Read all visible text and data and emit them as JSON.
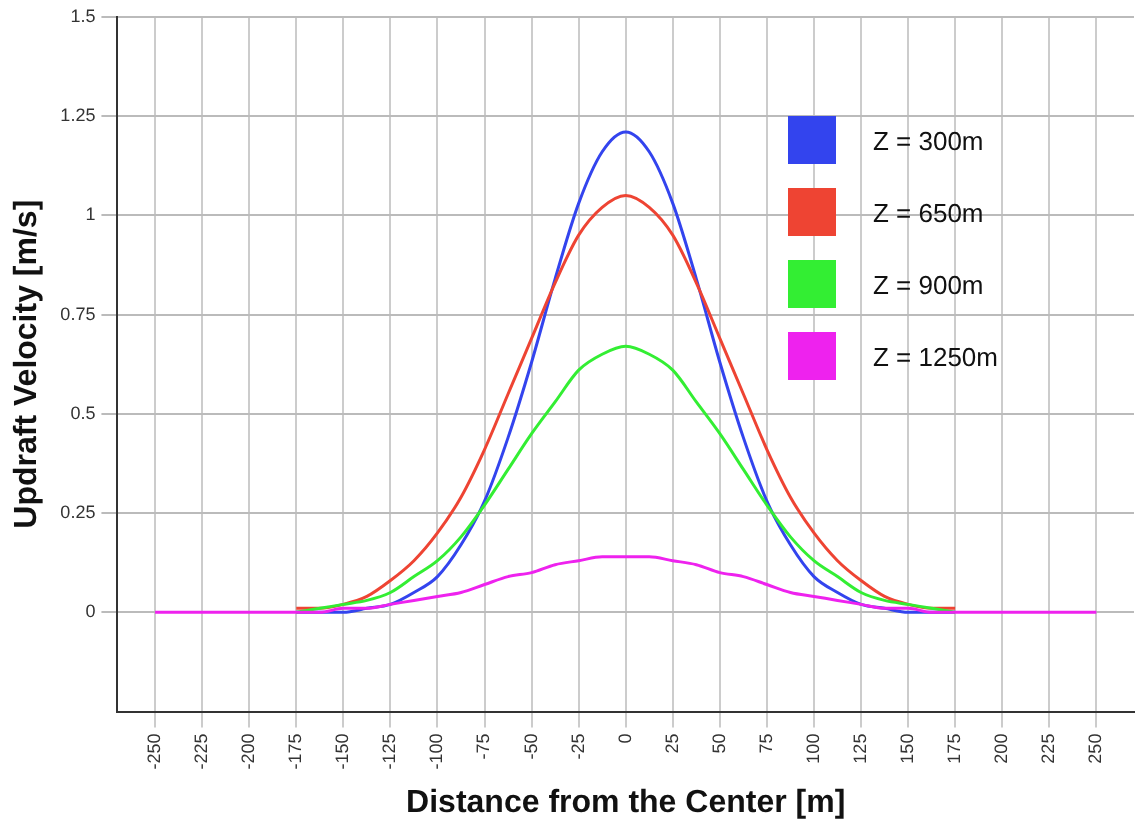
{
  "chart_data": {
    "type": "line",
    "xlabel": "Distance from the Center [m]",
    "ylabel": "Updraft Velocity [m/s]",
    "x": [
      -250,
      -200,
      -175,
      -162.5,
      -150,
      -137.5,
      -125,
      -112.5,
      -100,
      -87.5,
      -75,
      -62.5,
      -50,
      -37.5,
      -25,
      -12.5,
      0,
      12.5,
      25,
      37.5,
      50,
      62.5,
      75,
      87.5,
      100,
      112.5,
      125,
      137.5,
      150,
      162.5,
      175,
      200,
      250
    ],
    "series": [
      {
        "name": "Z = 300m",
        "color": "#3344ee",
        "values": [
          null,
          null,
          0,
          0,
          0,
          0.01,
          0.02,
          0.05,
          0.09,
          0.17,
          0.28,
          0.44,
          0.63,
          0.84,
          1.03,
          1.16,
          1.21,
          1.16,
          1.03,
          0.84,
          0.63,
          0.44,
          0.28,
          0.17,
          0.09,
          0.05,
          0.02,
          0.01,
          0,
          0,
          0,
          null,
          null
        ]
      },
      {
        "name": "Z = 650m",
        "color": "#ee4433",
        "values": [
          null,
          null,
          0.01,
          0.01,
          0.02,
          0.04,
          0.08,
          0.13,
          0.2,
          0.29,
          0.41,
          0.55,
          0.69,
          0.83,
          0.95,
          1.02,
          1.05,
          1.02,
          0.95,
          0.83,
          0.69,
          0.55,
          0.41,
          0.29,
          0.2,
          0.13,
          0.08,
          0.04,
          0.02,
          0.01,
          0.01,
          null,
          null
        ]
      },
      {
        "name": "Z = 900m",
        "color": "#33ee33",
        "values": [
          null,
          null,
          0,
          0.01,
          0.02,
          0.03,
          0.05,
          0.09,
          0.13,
          0.19,
          0.27,
          0.36,
          0.45,
          0.53,
          0.61,
          0.65,
          0.67,
          0.65,
          0.61,
          0.53,
          0.45,
          0.36,
          0.27,
          0.19,
          0.13,
          0.09,
          0.05,
          0.03,
          0.02,
          0.01,
          0,
          null,
          null
        ]
      },
      {
        "name": "Z = 1250m",
        "color": "#ee22ee",
        "values": [
          0,
          0,
          0,
          0,
          0.01,
          0.01,
          0.02,
          0.03,
          0.04,
          0.05,
          0.07,
          0.09,
          0.1,
          0.12,
          0.13,
          0.14,
          0.14,
          0.14,
          0.13,
          0.12,
          0.1,
          0.09,
          0.07,
          0.05,
          0.04,
          0.03,
          0.02,
          0.01,
          0.01,
          0,
          0,
          0,
          0
        ]
      }
    ],
    "xlim": [
      -270,
      270
    ],
    "xticks": [
      -250,
      -225,
      -200,
      -175,
      -150,
      -125,
      -100,
      -75,
      -50,
      -25,
      0,
      25,
      50,
      75,
      100,
      125,
      150,
      175,
      200,
      225,
      250
    ],
    "ylim": [
      -0.25,
      1.5
    ],
    "yticks": [
      0,
      0.25,
      0.5,
      0.75,
      1,
      1.25,
      1.5
    ],
    "grid": true,
    "legend": "top right",
    "marker": "none",
    "line_style": "solid"
  }
}
